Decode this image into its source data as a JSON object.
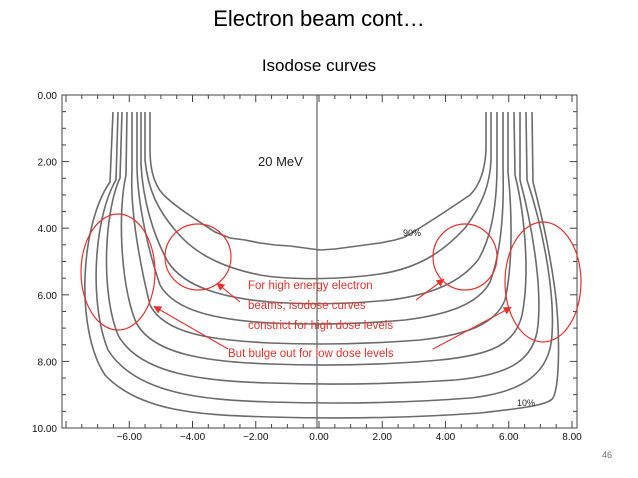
{
  "slide": {
    "title": "Electron beam cont…",
    "subtitle": "Isodose curves",
    "page_number": "46"
  },
  "figure": {
    "energy_label": "20 MeV",
    "curve_label_high": "90%",
    "curve_label_low": "10%",
    "x_ticks": [
      "−6.00",
      "−4.00",
      "−2.00",
      "0.00",
      "2.00",
      "4.00",
      "6.00",
      "8.00"
    ],
    "y_ticks": [
      "0.00",
      "2.00",
      "4.00",
      "6.00",
      "8.00",
      "10.00"
    ],
    "x_range": [
      -8,
      8
    ],
    "y_range": [
      0,
      10
    ]
  },
  "annotations": {
    "constrict_text": [
      "For high energy electron",
      "beams, isodose curves",
      "constrict for high dose levels"
    ],
    "bulge_text": "But bulge out for low dose levels",
    "color": "#e8322b"
  }
}
